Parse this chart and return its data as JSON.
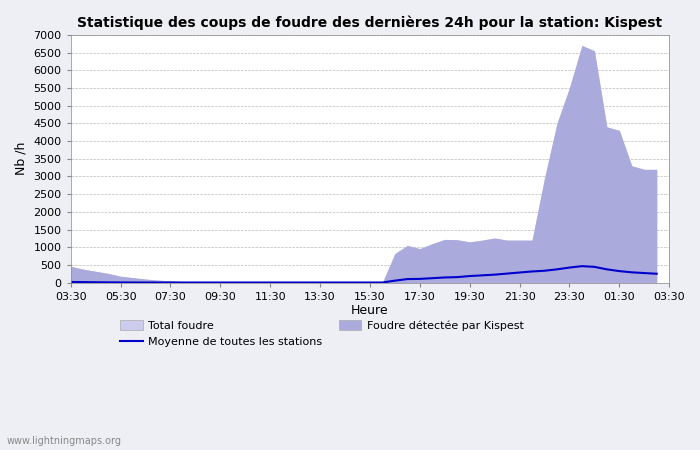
{
  "title": "Statistique des coups de foudre des dernières 24h pour la station: Kispest",
  "xlabel": "Heure",
  "ylabel": "Nb /h",
  "watermark": "www.lightningmaps.org",
  "ylim": [
    0,
    7000
  ],
  "yticks": [
    0,
    500,
    1000,
    1500,
    2000,
    2500,
    3000,
    3500,
    4000,
    4500,
    5000,
    5500,
    6000,
    6500,
    7000
  ],
  "xtick_labels": [
    "03:30",
    "05:30",
    "07:30",
    "09:30",
    "11:30",
    "13:30",
    "15:30",
    "17:30",
    "19:30",
    "21:30",
    "23:30",
    "01:30",
    "03:30"
  ],
  "bg_color": "#eeeef5",
  "plot_bg_color": "#ffffff",
  "total_color": "#ccccee",
  "kispest_color": "#aaaadd",
  "moyenne_color": "#0000cc",
  "legend_labels": [
    "Total foudre",
    "Moyenne de toutes les stations",
    "Foudre détectée par Kispest"
  ],
  "total_foudre": [
    460,
    380,
    320,
    260,
    180,
    140,
    100,
    70,
    50,
    30,
    20,
    15,
    10,
    8,
    5,
    5,
    5,
    5,
    5,
    5,
    5,
    5,
    5,
    5,
    5,
    5,
    820,
    1050,
    960,
    1100,
    1220,
    1210,
    1150,
    1200,
    1260,
    1200,
    1200,
    1200,
    2950,
    4500,
    5500,
    6700,
    6550,
    4400,
    4300,
    3300,
    3200,
    3200
  ],
  "kispest_foudre": [
    460,
    380,
    320,
    260,
    180,
    140,
    100,
    70,
    50,
    30,
    20,
    15,
    10,
    8,
    5,
    5,
    5,
    5,
    5,
    5,
    5,
    5,
    5,
    5,
    5,
    5,
    820,
    1050,
    960,
    1100,
    1220,
    1210,
    1150,
    1200,
    1260,
    1200,
    1200,
    1200,
    2950,
    4500,
    5500,
    6700,
    6550,
    4400,
    4300,
    3300,
    3200,
    3200
  ],
  "moyenne_foudre": [
    18,
    14,
    10,
    7,
    5,
    4,
    3,
    3,
    3,
    3,
    3,
    3,
    3,
    3,
    3,
    3,
    3,
    3,
    3,
    3,
    3,
    3,
    3,
    3,
    3,
    3,
    55,
    100,
    105,
    125,
    145,
    155,
    185,
    205,
    225,
    255,
    285,
    315,
    335,
    375,
    425,
    465,
    445,
    375,
    325,
    290,
    270,
    250
  ]
}
